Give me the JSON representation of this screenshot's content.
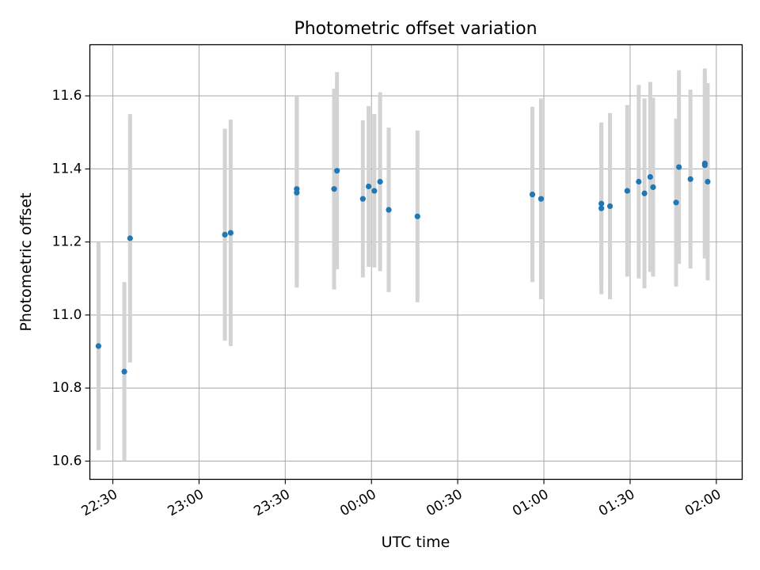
{
  "chart_data": {
    "type": "scatter",
    "title": "Photometric offset variation",
    "xlabel": "UTC time",
    "ylabel": "Photometric offset",
    "xlim": [
      "22:22",
      "02:09"
    ],
    "ylim": [
      10.55,
      11.74
    ],
    "grid": true,
    "x_ticks": [
      "22:30",
      "23:00",
      "23:30",
      "00:00",
      "00:30",
      "01:00",
      "01:30",
      "02:00"
    ],
    "y_ticks": [
      "10.6",
      "10.8",
      "11.0",
      "11.2",
      "11.4",
      "11.6"
    ],
    "colors": {
      "points": "#1f77b4",
      "errorbars": "#d3d3d3",
      "grid": "#b0b0b0"
    },
    "series": [
      {
        "points": [
          {
            "x": "22:25",
            "y": 10.915,
            "err": 0.285
          },
          {
            "x": "22:34",
            "y": 10.845,
            "err": 0.245
          },
          {
            "x": "22:36",
            "y": 11.21,
            "err": 0.34
          },
          {
            "x": "23:09",
            "y": 11.22,
            "err": 0.29
          },
          {
            "x": "23:11",
            "y": 11.225,
            "err": 0.31
          },
          {
            "x": "23:34",
            "y": 11.345,
            "err": 0.255
          },
          {
            "x": "23:34",
            "y": 11.335,
            "err": 0.26
          },
          {
            "x": "23:47",
            "y": 11.345,
            "err": 0.275
          },
          {
            "x": "23:48",
            "y": 11.395,
            "err": 0.27
          },
          {
            "x": "23:57",
            "y": 11.318,
            "err": 0.215
          },
          {
            "x": "23:59",
            "y": 11.352,
            "err": 0.22
          },
          {
            "x": "00:01",
            "y": 11.34,
            "err": 0.21
          },
          {
            "x": "00:03",
            "y": 11.365,
            "err": 0.245
          },
          {
            "x": "00:06",
            "y": 11.288,
            "err": 0.225
          },
          {
            "x": "00:16",
            "y": 11.27,
            "err": 0.235
          },
          {
            "x": "00:56",
            "y": 11.33,
            "err": 0.24
          },
          {
            "x": "00:59",
            "y": 11.318,
            "err": 0.275
          },
          {
            "x": "01:20",
            "y": 11.292,
            "err": 0.235
          },
          {
            "x": "01:20",
            "y": 11.305,
            "err": 0.22
          },
          {
            "x": "01:23",
            "y": 11.298,
            "err": 0.255
          },
          {
            "x": "01:29",
            "y": 11.34,
            "err": 0.235
          },
          {
            "x": "01:33",
            "y": 11.365,
            "err": 0.265
          },
          {
            "x": "01:35",
            "y": 11.333,
            "err": 0.26
          },
          {
            "x": "01:37",
            "y": 11.378,
            "err": 0.26
          },
          {
            "x": "01:38",
            "y": 11.35,
            "err": 0.245
          },
          {
            "x": "01:46",
            "y": 11.308,
            "err": 0.23
          },
          {
            "x": "01:47",
            "y": 11.405,
            "err": 0.265
          },
          {
            "x": "01:51",
            "y": 11.372,
            "err": 0.245
          },
          {
            "x": "01:56",
            "y": 11.415,
            "err": 0.26
          },
          {
            "x": "01:56",
            "y": 11.41,
            "err": 0.255
          },
          {
            "x": "01:57",
            "y": 11.365,
            "err": 0.27
          }
        ]
      }
    ]
  }
}
